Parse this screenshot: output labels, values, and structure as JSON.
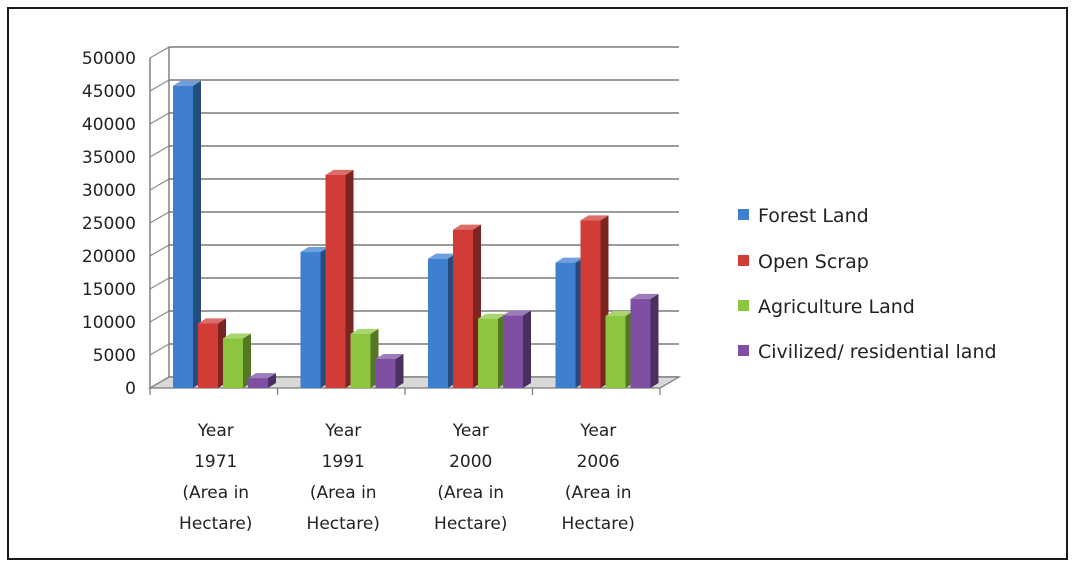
{
  "chart_data": {
    "type": "bar",
    "title": "",
    "xlabel": "",
    "ylabel": "",
    "ylim": [
      0,
      50000
    ],
    "y_ticks": [
      0,
      5000,
      10000,
      15000,
      20000,
      25000,
      30000,
      35000,
      40000,
      45000,
      50000
    ],
    "grid": true,
    "style": "3d-clustered-column",
    "legend_position": "right",
    "categories": [
      [
        "Year",
        "1971",
        "(Area in",
        "Hectare)"
      ],
      [
        "Year",
        "1991",
        "(Area in",
        "Hectare)"
      ],
      [
        "Year",
        "2000",
        "(Area in",
        "Hectare)"
      ],
      [
        "Year",
        "2006",
        "(Area in",
        "Hectare)"
      ]
    ],
    "series": [
      {
        "name": "Forest Land",
        "color": "#3f7fd0",
        "values": [
          45800,
          20600,
          19600,
          19000
        ]
      },
      {
        "name": "Open Scrap",
        "color": "#d23c36",
        "values": [
          9800,
          32300,
          24000,
          25400
        ]
      },
      {
        "name": "Agriculture Land",
        "color": "#8cc63f",
        "values": [
          7500,
          8200,
          10500,
          10900
        ]
      },
      {
        "name": "Civilized/ residential land",
        "color": "#7e4fa3",
        "values": [
          1500,
          4400,
          11000,
          13500
        ]
      }
    ]
  }
}
